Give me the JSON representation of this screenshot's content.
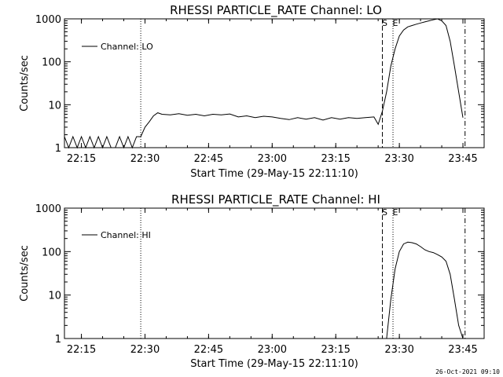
{
  "footer": {
    "timestamp": "26-Oct-2021 09:10"
  },
  "chart_data": [
    {
      "type": "line",
      "title": "RHESSI PARTICLE_RATE Channel: LO",
      "xlabel": "Start Time (29-May-15 22:11:10)",
      "ylabel": "Counts/sec",
      "x_ticks": [
        "22:15",
        "22:30",
        "22:45",
        "23:00",
        "23:15",
        "23:30",
        "23:45"
      ],
      "y_ticks": [
        "1",
        "10",
        "100",
        "1000"
      ],
      "y_scale": "log",
      "xlim": [
        "22:11",
        "23:50"
      ],
      "ylim": [
        1,
        1000
      ],
      "legend": {
        "position": "top-left",
        "entries": [
          "Channel: LO"
        ]
      },
      "markers": [
        {
          "time": "22:29",
          "style": "dotted",
          "label": ""
        },
        {
          "time": "23:26",
          "style": "dashed",
          "label": "S"
        },
        {
          "time": "23:28.5",
          "style": "dotted",
          "label": "E"
        },
        {
          "time": "23:45.5",
          "style": "dash-dot",
          "label": ""
        }
      ],
      "series": [
        {
          "name": "Channel: LO",
          "x": [
            "22:11",
            "22:12",
            "22:13",
            "22:14",
            "22:15",
            "22:16",
            "22:17",
            "22:18",
            "22:19",
            "22:20",
            "22:21",
            "22:22",
            "22:23",
            "22:24",
            "22:25",
            "22:26",
            "22:27",
            "22:28",
            "22:29",
            "22:30",
            "22:31",
            "22:32",
            "22:33",
            "22:34",
            "22:36",
            "22:38",
            "22:40",
            "22:42",
            "22:44",
            "22:46",
            "22:48",
            "22:50",
            "22:52",
            "22:54",
            "22:56",
            "22:58",
            "23:00",
            "23:02",
            "23:04",
            "23:06",
            "23:08",
            "23:10",
            "23:12",
            "23:14",
            "23:16",
            "23:18",
            "23:20",
            "23:22",
            "23:24",
            "23:25",
            "23:26",
            "23:27",
            "23:28",
            "23:29",
            "23:30",
            "23:31",
            "23:32",
            "23:33",
            "23:34",
            "23:35",
            "23:36",
            "23:37",
            "23:38",
            "23:39",
            "23:40",
            "23:41",
            "23:42",
            "23:43",
            "23:44",
            "23:45"
          ],
          "values": [
            1.8,
            1,
            1.8,
            1,
            1.8,
            1,
            1.8,
            1,
            1.8,
            1,
            1.8,
            1,
            1,
            1.8,
            1,
            1.8,
            1,
            1.8,
            1.8,
            3,
            4,
            5.5,
            6.5,
            6,
            5.8,
            6.2,
            5.7,
            6,
            5.5,
            6,
            5.8,
            6.1,
            5.2,
            5.5,
            5,
            5.4,
            5.2,
            4.8,
            4.5,
            5,
            4.6,
            5,
            4.4,
            5,
            4.6,
            5,
            4.8,
            5,
            5.2,
            3.5,
            7,
            20,
            80,
            200,
            400,
            550,
            650,
            700,
            750,
            800,
            850,
            900,
            950,
            1000,
            900,
            700,
            300,
            80,
            20,
            5
          ]
        }
      ]
    },
    {
      "type": "line",
      "title": "RHESSI PARTICLE_RATE Channel: HI",
      "xlabel": "Start Time (29-May-15 22:11:10)",
      "ylabel": "Counts/sec",
      "x_ticks": [
        "22:15",
        "22:30",
        "22:45",
        "23:00",
        "23:15",
        "23:30",
        "23:45"
      ],
      "y_ticks": [
        "1",
        "10",
        "100",
        "1000"
      ],
      "y_scale": "log",
      "xlim": [
        "22:11",
        "23:50"
      ],
      "ylim": [
        1,
        1000
      ],
      "legend": {
        "position": "top-left",
        "entries": [
          "Channel: HI"
        ]
      },
      "markers": [
        {
          "time": "22:29",
          "style": "dotted",
          "label": ""
        },
        {
          "time": "23:26",
          "style": "dashed",
          "label": "S"
        },
        {
          "time": "23:28.5",
          "style": "dotted",
          "label": "E"
        },
        {
          "time": "23:45.5",
          "style": "dash-dot",
          "label": ""
        }
      ],
      "series": [
        {
          "name": "Channel: HI",
          "x": [
            "23:27",
            "23:28",
            "23:29",
            "23:30",
            "23:31",
            "23:32",
            "23:33",
            "23:34",
            "23:35",
            "23:36",
            "23:37",
            "23:38",
            "23:39",
            "23:40",
            "23:41",
            "23:42",
            "23:43",
            "23:44",
            "23:45"
          ],
          "values": [
            1,
            8,
            40,
            100,
            150,
            165,
            160,
            150,
            130,
            110,
            100,
            95,
            85,
            75,
            60,
            30,
            8,
            2,
            1
          ]
        }
      ]
    }
  ]
}
